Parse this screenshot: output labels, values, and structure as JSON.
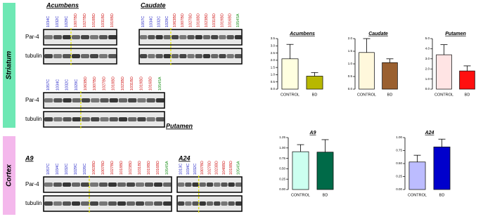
{
  "regions": [
    "Striatum",
    "Cortex"
  ],
  "row_labels": [
    "Par-4",
    "tubulin"
  ],
  "group_colors": {
    "C": "#2a2ac8",
    "BD": "#d01818",
    "SA": "#189018"
  },
  "blots": [
    {
      "title": "Acumbens",
      "lanes": [
        "1034C",
        "1032C",
        "1029C",
        "1007BD",
        "1027BD",
        "1018BD",
        "1031BD",
        "1019BD"
      ]
    },
    {
      "title": "Caudate",
      "lanes": [
        "1057C",
        "1034C",
        "1032C",
        "1029C",
        "1063BD",
        "1007BD",
        "1027BD",
        "1018BD",
        "1023BD",
        "1031BD",
        "1019BD",
        "1016BD",
        "1054SA"
      ]
    },
    {
      "title": "Putamen",
      "lanes": [
        "1057C",
        "1034C",
        "1032C",
        "1029C",
        "1063BD",
        "1007BD",
        "1027BD",
        "1018BD",
        "1023BD",
        "1031BD",
        "1019BD",
        "1016BD",
        "1054SA"
      ]
    },
    {
      "title": "A9",
      "lanes": [
        "1057C",
        "1034C",
        "1032C",
        "1029C",
        "1026C",
        "1063BD",
        "1007BD",
        "1027BD",
        "1018BD",
        "1023BD",
        "1031BD",
        "1019BD",
        "1016BD",
        "1054SA"
      ]
    },
    {
      "title": "A24",
      "lanes": [
        "1013C",
        "1034C",
        "1032C",
        "1007BD",
        "1027BD",
        "1023BD",
        "1048BD",
        "1018BD",
        "1054SA"
      ]
    }
  ],
  "chart_data": [
    {
      "type": "bar",
      "title": "Acumbens",
      "categories": [
        "CONTROL",
        "BD"
      ],
      "values": [
        2.1,
        0.9
      ],
      "errors": [
        1.0,
        0.25
      ],
      "colors": [
        "#ffffe0",
        "#b8b800"
      ],
      "ylim": [
        0,
        3.5
      ],
      "yticks": [
        {
          "value": 0,
          "label": "0.0"
        },
        0.5,
        {
          "value": 1,
          "label": "1.0"
        },
        1.5,
        {
          "value": 2,
          "label": "2.0"
        },
        2.5,
        {
          "value": 3,
          "label": "3.0"
        },
        3.5
      ]
    },
    {
      "type": "bar",
      "title": "Caudate",
      "categories": [
        "CONTROL",
        "BD"
      ],
      "values": [
        1.45,
        1.05
      ],
      "errors": [
        0.55,
        0.15
      ],
      "colors": [
        "#fff8dc",
        "#9a6030"
      ],
      "ylim": [
        0,
        2
      ],
      "yticks": [
        {
          "value": 0,
          "label": "0.0"
        },
        0.5,
        {
          "value": 1,
          "label": "1.0"
        },
        1.5,
        {
          "value": 2,
          "label": "2.0"
        }
      ]
    },
    {
      "type": "bar",
      "title": "Putamen",
      "categories": [
        "CONTROL",
        "BD"
      ],
      "values": [
        3.4,
        1.8
      ],
      "errors": [
        1.0,
        0.5
      ],
      "colors": [
        "#ffe4e4",
        "#ff1010"
      ],
      "ylim": [
        0,
        5
      ],
      "yticks": [
        {
          "value": 0,
          "label": "0.0"
        },
        {
          "value": 1,
          "label": "1.0"
        },
        {
          "value": 2,
          "label": "2.0"
        },
        {
          "value": 3,
          "label": "3.0"
        },
        {
          "value": 4,
          "label": "4.0"
        },
        {
          "value": 5,
          "label": "5.0"
        }
      ]
    },
    {
      "type": "bar",
      "title": "A9",
      "categories": [
        "CONTROL",
        "BD"
      ],
      "values": [
        0.91,
        0.9
      ],
      "errors": [
        0.17,
        0.3
      ],
      "colors": [
        "#ccfff0",
        "#006a48"
      ],
      "ylim": [
        0,
        1.25
      ],
      "yticks": [
        {
          "value": 0,
          "label": "0.00"
        },
        0.25,
        {
          "value": 0.5,
          "label": "0.50"
        },
        0.75,
        {
          "value": 1,
          "label": "1.00"
        },
        1.25
      ]
    },
    {
      "type": "bar",
      "title": "A24",
      "categories": [
        "CONTROL",
        "BD"
      ],
      "values": [
        0.53,
        0.82
      ],
      "errors": [
        0.13,
        0.15
      ],
      "colors": [
        "#bcbcff",
        "#0000cc"
      ],
      "ylim": [
        0,
        1
      ],
      "yticks": [
        {
          "value": 0,
          "label": "0.00"
        },
        0.25,
        {
          "value": 0.5,
          "label": "0.50"
        },
        0.75,
        {
          "value": 1,
          "label": "1.00"
        }
      ]
    }
  ]
}
